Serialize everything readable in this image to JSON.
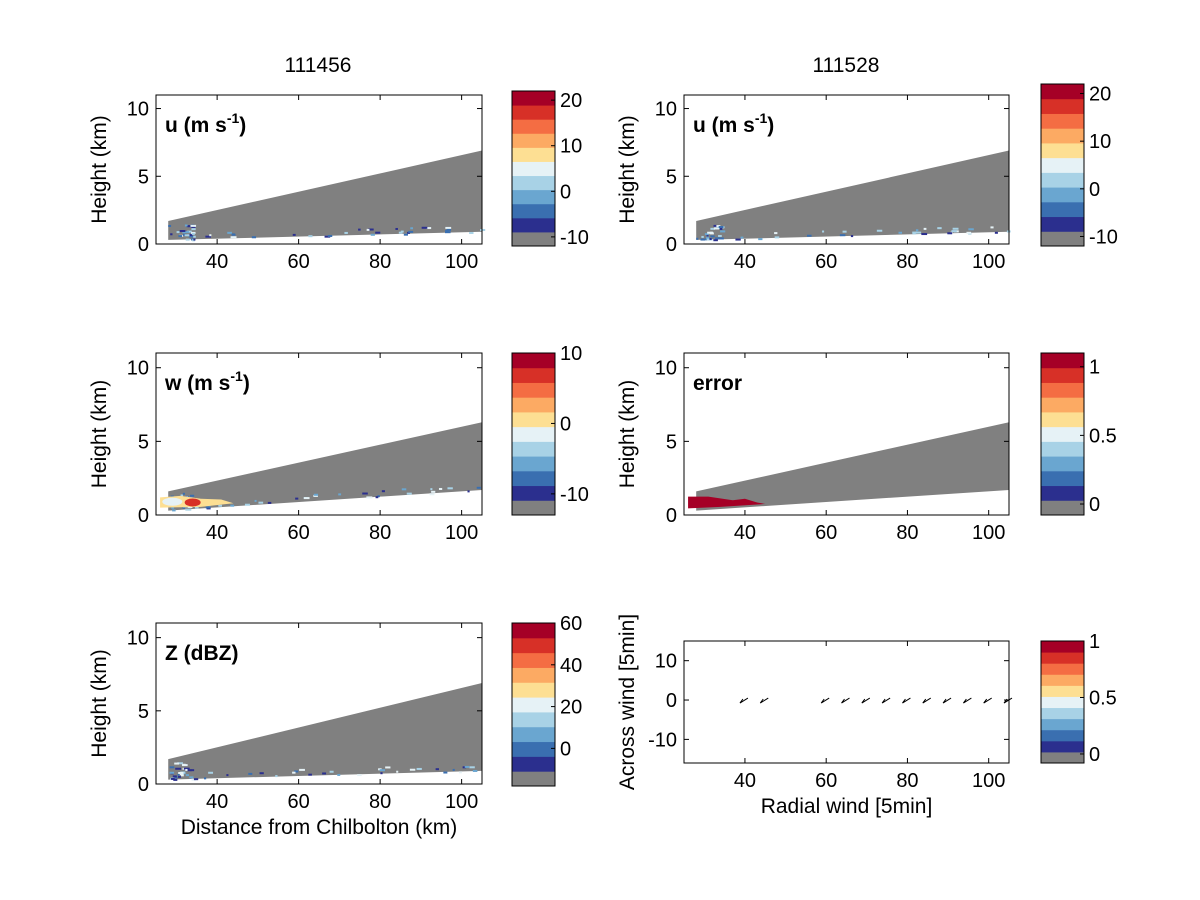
{
  "colors": {
    "cone_gray": "#808080",
    "palette": [
      "#808080",
      "#2b2f8e",
      "#3a6fb0",
      "#6aa6d0",
      "#a8d2e6",
      "#e6f2f6",
      "#fddf93",
      "#fcaa63",
      "#f46d43",
      "#d73027",
      "#a50026"
    ]
  },
  "chart_data": [
    {
      "type": "heatmap",
      "column_title": "111456",
      "panel_label": "u (m s",
      "panel_label_sup": "-1",
      "panel_label_suffix": ")",
      "ylabel": "Height (km)",
      "xlabel": "",
      "xlim": [
        25,
        105
      ],
      "ylim": [
        0,
        11
      ],
      "xticks": [
        "40",
        "60",
        "80",
        "100"
      ],
      "yticks": [
        "0",
        "5",
        "10"
      ],
      "cone": {
        "x": [
          28,
          105
        ],
        "y_top": [
          1.7,
          6.9
        ],
        "y_bottom": [
          0.3,
          0.9
        ]
      },
      "colorbar": {
        "range": [
          -12,
          22
        ],
        "ticks": [
          "-10",
          "0",
          "10",
          "20"
        ]
      }
    },
    {
      "type": "heatmap",
      "column_title": "111528",
      "panel_label": "u (m s",
      "panel_label_sup": "-1",
      "panel_label_suffix": ")",
      "ylabel": "Height (km)",
      "xlabel": "",
      "xlim": [
        25,
        105
      ],
      "ylim": [
        0,
        11
      ],
      "xticks": [
        "40",
        "60",
        "80",
        "100"
      ],
      "yticks": [
        "0",
        "5",
        "10"
      ],
      "cone": {
        "x": [
          28,
          105
        ],
        "y_top": [
          1.7,
          6.9
        ],
        "y_bottom": [
          0.3,
          0.9
        ]
      },
      "colorbar": {
        "range": [
          -12,
          22
        ],
        "ticks": [
          "-10",
          "0",
          "10",
          "20"
        ]
      }
    },
    {
      "type": "heatmap",
      "panel_label": "w (m s",
      "panel_label_sup": "-1",
      "panel_label_suffix": ")",
      "ylabel": "Height (km)",
      "xlabel": "",
      "xlim": [
        25,
        105
      ],
      "ylim": [
        0,
        11
      ],
      "xticks": [
        "40",
        "60",
        "80",
        "100"
      ],
      "yticks": [
        "0",
        "5",
        "10"
      ],
      "cone": {
        "x": [
          28,
          105
        ],
        "y_top": [
          1.6,
          6.3
        ],
        "y_bottom": [
          0.3,
          1.7
        ]
      },
      "colorbar": {
        "range": [
          -13,
          10
        ],
        "ticks": [
          "-10",
          "0",
          "10"
        ]
      }
    },
    {
      "type": "heatmap",
      "panel_label": "error",
      "ylabel": "Height (km)",
      "xlabel": "",
      "xlim": [
        25,
        105
      ],
      "ylim": [
        0,
        11
      ],
      "xticks": [
        "40",
        "60",
        "80",
        "100"
      ],
      "yticks": [
        "0",
        "5",
        "10"
      ],
      "cone": {
        "x": [
          28,
          105
        ],
        "y_top": [
          1.6,
          6.3
        ],
        "y_bottom": [
          0.3,
          1.7
        ]
      },
      "colorbar": {
        "range": [
          -0.08,
          1.1
        ],
        "ticks": [
          "0",
          "0.5",
          "1"
        ]
      }
    },
    {
      "type": "heatmap",
      "panel_label": "Z (dBZ)",
      "ylabel": "Height (km)",
      "xlabel": "Distance from Chilbolton (km)",
      "xlim": [
        25,
        105
      ],
      "ylim": [
        0,
        11
      ],
      "xticks": [
        "40",
        "60",
        "80",
        "100"
      ],
      "yticks": [
        "0",
        "5",
        "10"
      ],
      "cone": {
        "x": [
          28,
          105
        ],
        "y_top": [
          1.7,
          6.9
        ],
        "y_bottom": [
          0.3,
          0.9
        ]
      },
      "colorbar": {
        "range": [
          -18,
          60
        ],
        "ticks": [
          "0",
          "20",
          "40",
          "60"
        ]
      }
    },
    {
      "type": "scatter",
      "ylabel": "Across wind [5min]",
      "xlabel": "Radial wind [5min]",
      "xlim": [
        25,
        105
      ],
      "ylim": [
        -16,
        15
      ],
      "xticks": [
        "40",
        "60",
        "80",
        "100"
      ],
      "yticks": [
        "-10",
        "0",
        "10"
      ],
      "arrows_x": [
        40,
        45,
        60,
        65,
        70,
        75,
        80,
        85,
        90,
        95,
        100,
        105
      ],
      "arrows_y": [
        0,
        0,
        0,
        0,
        0,
        0,
        0,
        0,
        0,
        0,
        0,
        0
      ],
      "colorbar": {
        "range": [
          -0.08,
          1.0
        ],
        "ticks": [
          "0",
          "0.5",
          "1"
        ]
      }
    }
  ]
}
